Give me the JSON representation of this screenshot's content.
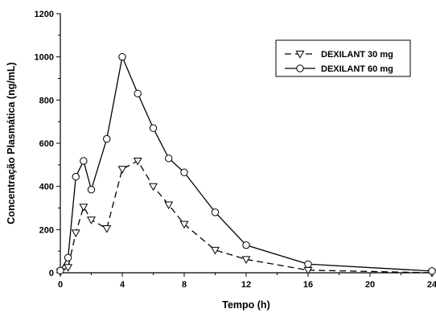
{
  "chart_data": {
    "type": "line",
    "xlabel": "Tempo (h)",
    "ylabel": "Concentração Plasmática (ng/mL)",
    "xlim": [
      0,
      24
    ],
    "ylim": [
      0,
      1200
    ],
    "x_ticks": [
      0,
      4,
      8,
      12,
      16,
      20,
      24
    ],
    "y_ticks": [
      0,
      200,
      400,
      600,
      800,
      1000,
      1200
    ],
    "grid": false,
    "legend_position": "top-right",
    "series": [
      {
        "name": "DEXILANT 30 mg",
        "line_style": "dashed",
        "marker": "triangle-down",
        "color": "#000000",
        "x": [
          0,
          0.5,
          1,
          1.5,
          2,
          3,
          4,
          5,
          6,
          7,
          8,
          10,
          12,
          16,
          24
        ],
        "y": [
          5,
          25,
          185,
          305,
          245,
          205,
          480,
          518,
          400,
          315,
          225,
          105,
          62,
          12,
          0
        ]
      },
      {
        "name": "DEXILANT 60 mg",
        "line_style": "solid",
        "marker": "circle",
        "color": "#000000",
        "x": [
          0,
          0.5,
          1,
          1.5,
          2,
          3,
          4,
          5,
          6,
          7,
          8,
          10,
          12,
          16,
          24
        ],
        "y": [
          10,
          70,
          445,
          518,
          385,
          620,
          1000,
          830,
          670,
          530,
          465,
          280,
          128,
          40,
          8
        ]
      }
    ]
  }
}
